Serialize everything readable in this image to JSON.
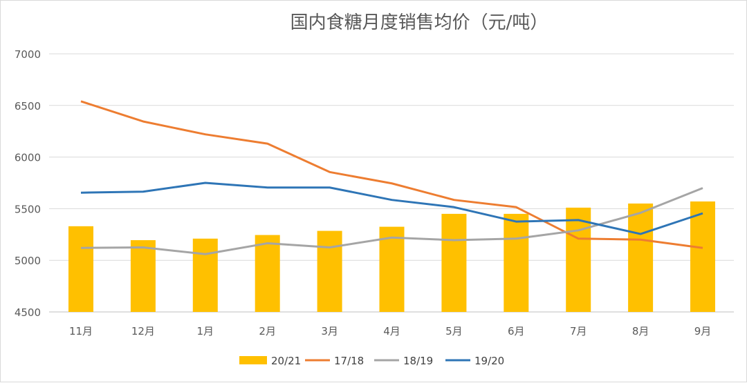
{
  "chart_data": {
    "type": "bar+line",
    "title": "国内食糖月度销售均价（元/吨）",
    "categories": [
      "11月",
      "12月",
      "1月",
      "2月",
      "3月",
      "4月",
      "5月",
      "6月",
      "7月",
      "8月",
      "9月"
    ],
    "ylim": [
      4500,
      7000
    ],
    "yticks": [
      4500,
      5000,
      5500,
      6000,
      6500,
      7000
    ],
    "grid": true,
    "legend": "bottom",
    "series": [
      {
        "name": "20/21",
        "kind": "bar",
        "color": "#FFC000",
        "values": [
          5330,
          5195,
          5210,
          5245,
          5285,
          5325,
          5450,
          5450,
          5510,
          5550,
          5570
        ]
      },
      {
        "name": "17/18",
        "kind": "line",
        "color": "#ED7D31",
        "values": [
          6540,
          6345,
          6220,
          6130,
          5855,
          5745,
          5585,
          5515,
          5210,
          5200,
          5120
        ]
      },
      {
        "name": "18/19",
        "kind": "line",
        "color": "#A5A5A5",
        "values": [
          5120,
          5125,
          5060,
          5165,
          5125,
          5220,
          5195,
          5210,
          5290,
          5460,
          5700
        ]
      },
      {
        "name": "19/20",
        "kind": "line",
        "color": "#2E75B6",
        "values": [
          5655,
          5665,
          5750,
          5705,
          5705,
          5585,
          5515,
          5375,
          5390,
          5255,
          5455
        ]
      }
    ]
  }
}
